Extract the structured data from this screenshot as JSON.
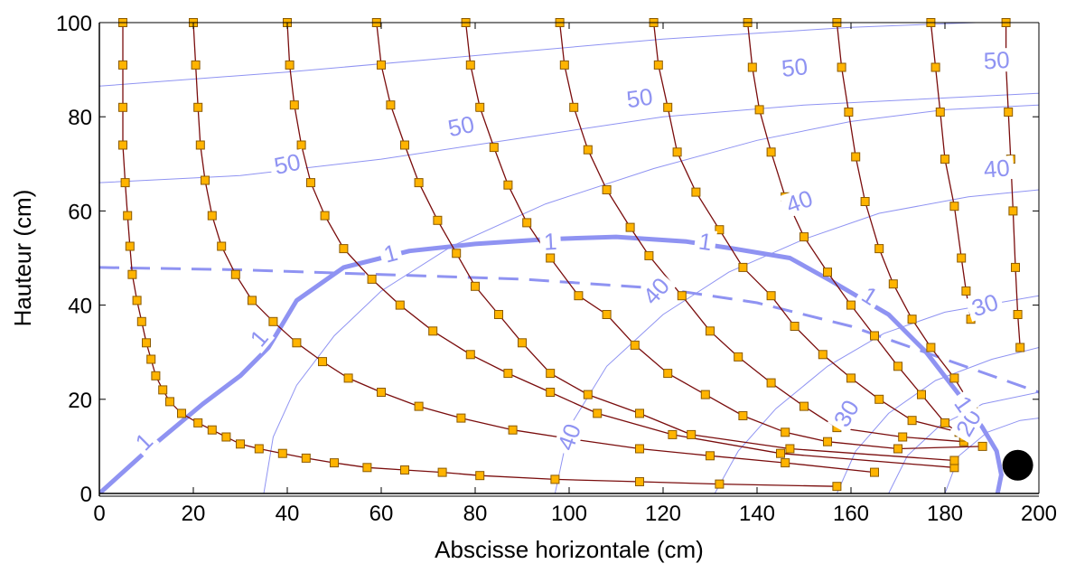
{
  "chart_data": {
    "type": "line",
    "title": "",
    "xlabel": "Abscisse horizontale (cm)",
    "ylabel": "Hauteur (cm)",
    "xlim": [
      0,
      200
    ],
    "ylim": [
      0,
      100
    ],
    "x_ticks": [
      "0",
      "20",
      "40",
      "60",
      "80",
      "100",
      "120",
      "140",
      "160",
      "180",
      "200"
    ],
    "y_ticks": [
      "0",
      "20",
      "40",
      "60",
      "80",
      "100"
    ],
    "grid": false,
    "colors": {
      "trajectory": "#7a0d0d",
      "marker_fill": "#ffb400",
      "marker_edge": "#8a5a00",
      "contour": "#8f93f2",
      "source": "#000000"
    },
    "source_point": {
      "x": 195.5,
      "y": 6
    },
    "trajectories": [
      {
        "points": [
          [
            5,
            100
          ],
          [
            5,
            91
          ],
          [
            5,
            82
          ],
          [
            5,
            74
          ],
          [
            5.5,
            66
          ],
          [
            6,
            59
          ],
          [
            6.5,
            52.5
          ],
          [
            7,
            46.5
          ],
          [
            8,
            41
          ],
          [
            9,
            36.5
          ],
          [
            10,
            32
          ],
          [
            11,
            28.5
          ],
          [
            12,
            25
          ],
          [
            13.5,
            22
          ],
          [
            15,
            19.5
          ],
          [
            17.5,
            17
          ],
          [
            21,
            15
          ],
          [
            24,
            13.5
          ],
          [
            27,
            12
          ],
          [
            30,
            10.5
          ],
          [
            34,
            9.5
          ],
          [
            39,
            8.5
          ],
          [
            44,
            7.5
          ],
          [
            50,
            6.5
          ],
          [
            57,
            5.5
          ],
          [
            65,
            5
          ],
          [
            73,
            4.5
          ],
          [
            81,
            3.8
          ],
          [
            97,
            3
          ],
          [
            115,
            2.5
          ],
          [
            132,
            2
          ],
          [
            157,
            1.5
          ]
        ]
      },
      {
        "points": [
          [
            20,
            100
          ],
          [
            20.5,
            91
          ],
          [
            21,
            82
          ],
          [
            21.5,
            74
          ],
          [
            22.5,
            66.5
          ],
          [
            24,
            59
          ],
          [
            26,
            52.5
          ],
          [
            29,
            46.5
          ],
          [
            32.5,
            41
          ],
          [
            37,
            36.5
          ],
          [
            42,
            32
          ],
          [
            47.5,
            28
          ],
          [
            53,
            24.5
          ],
          [
            60,
            21.5
          ],
          [
            68,
            18.5
          ],
          [
            77,
            16
          ],
          [
            88,
            13.5
          ],
          [
            101,
            11.5
          ],
          [
            115,
            9.5
          ],
          [
            130,
            8
          ],
          [
            146,
            6.5
          ],
          [
            165,
            4.5
          ]
        ]
      },
      {
        "points": [
          [
            40,
            100
          ],
          [
            40.5,
            91
          ],
          [
            41.5,
            82.5
          ],
          [
            43,
            74
          ],
          [
            45,
            66
          ],
          [
            48,
            59
          ],
          [
            52,
            52
          ],
          [
            58,
            45.5
          ],
          [
            64,
            40
          ],
          [
            71,
            34.5
          ],
          [
            79,
            29.5
          ],
          [
            87,
            25.5
          ],
          [
            96,
            21.5
          ],
          [
            106,
            17
          ],
          [
            122,
            12.5
          ],
          [
            145,
            8.5
          ],
          [
            182,
            5.5
          ]
        ]
      },
      {
        "points": [
          [
            59,
            100
          ],
          [
            60,
            91
          ],
          [
            62,
            82.5
          ],
          [
            65,
            74
          ],
          [
            68,
            66
          ],
          [
            72,
            58
          ],
          [
            76,
            51
          ],
          [
            80,
            44
          ],
          [
            85,
            38
          ],
          [
            90,
            32
          ],
          [
            96,
            25.5
          ],
          [
            104,
            21
          ],
          [
            115,
            17
          ],
          [
            126,
            12.5
          ],
          [
            147,
            9.5
          ],
          [
            182,
            7
          ]
        ]
      },
      {
        "points": [
          [
            78,
            100
          ],
          [
            79,
            91
          ],
          [
            81,
            82
          ],
          [
            84,
            73.5
          ],
          [
            87,
            65.5
          ],
          [
            91,
            57.5
          ],
          [
            96,
            50
          ],
          [
            102,
            42
          ],
          [
            108,
            38
          ],
          [
            114,
            31.5
          ],
          [
            121,
            25.5
          ],
          [
            129,
            21
          ],
          [
            137,
            16.5
          ],
          [
            146,
            13
          ],
          [
            155,
            11
          ],
          [
            170,
            9.5
          ],
          [
            188,
            10
          ]
        ]
      },
      {
        "points": [
          [
            98,
            100
          ],
          [
            99,
            91
          ],
          [
            101,
            82
          ],
          [
            104,
            73
          ],
          [
            108,
            64.5
          ],
          [
            113,
            56.5
          ],
          [
            117,
            50.5
          ],
          [
            124,
            42
          ],
          [
            130,
            34.5
          ],
          [
            136,
            29
          ],
          [
            143,
            23.5
          ],
          [
            150,
            18.5
          ],
          [
            157,
            14
          ],
          [
            171,
            12
          ],
          [
            184,
            11
          ]
        ]
      },
      {
        "points": [
          [
            118,
            100
          ],
          [
            119,
            91
          ],
          [
            121,
            82
          ],
          [
            123,
            72.5
          ],
          [
            127,
            64
          ],
          [
            132,
            56
          ],
          [
            137,
            48
          ],
          [
            143,
            42
          ],
          [
            148,
            35.5
          ],
          [
            154,
            29.5
          ],
          [
            160,
            24.5
          ],
          [
            166,
            20
          ],
          [
            173,
            15.5
          ],
          [
            183,
            13
          ]
        ]
      },
      {
        "points": [
          [
            138,
            100
          ],
          [
            139,
            90.5
          ],
          [
            140.5,
            81.5
          ],
          [
            143,
            72.5
          ],
          [
            146,
            63
          ],
          [
            150,
            54.5
          ],
          [
            155,
            47
          ],
          [
            160,
            40
          ],
          [
            165,
            33.5
          ],
          [
            170,
            27
          ],
          [
            175,
            21
          ],
          [
            180,
            15
          ],
          [
            184,
            12
          ]
        ]
      },
      {
        "points": [
          [
            157,
            100
          ],
          [
            158,
            90.5
          ],
          [
            159.5,
            81
          ],
          [
            161,
            71.5
          ],
          [
            163,
            62
          ],
          [
            166,
            52
          ],
          [
            169,
            44.5
          ],
          [
            173,
            37
          ],
          [
            177,
            31
          ],
          [
            182,
            24.5
          ],
          [
            186,
            18
          ]
        ]
      },
      {
        "points": [
          [
            177,
            100
          ],
          [
            178,
            90.5
          ],
          [
            179,
            81
          ],
          [
            180,
            71
          ],
          [
            182,
            61
          ],
          [
            183.5,
            50
          ],
          [
            184.5,
            43
          ],
          [
            185.5,
            37
          ]
        ]
      },
      {
        "points": [
          [
            193,
            100
          ],
          [
            193,
            91
          ],
          [
            193.5,
            81
          ],
          [
            194,
            71
          ],
          [
            194.5,
            60
          ],
          [
            195,
            48
          ],
          [
            195.5,
            38
          ],
          [
            196,
            31
          ]
        ]
      }
    ],
    "contours": [
      {
        "style": "bold-solid",
        "label": "1",
        "points": [
          [
            0,
            0
          ],
          [
            10,
            9
          ],
          [
            22,
            19
          ],
          [
            30,
            25
          ],
          [
            36,
            31
          ],
          [
            42,
            41
          ],
          [
            52,
            48
          ],
          [
            66,
            51.5
          ],
          [
            80,
            53
          ],
          [
            95,
            54
          ],
          [
            110,
            54.5
          ],
          [
            125,
            53.5
          ],
          [
            135,
            52
          ],
          [
            147,
            50
          ],
          [
            156,
            45
          ],
          [
            168,
            38
          ],
          [
            176,
            30
          ],
          [
            183,
            21
          ],
          [
            188,
            14
          ],
          [
            191,
            9
          ],
          [
            192,
            4
          ],
          [
            191,
            -1
          ]
        ]
      },
      {
        "style": "bold-dashed",
        "label": "",
        "points": [
          [
            0,
            48
          ],
          [
            30,
            47.5
          ],
          [
            60,
            46.5
          ],
          [
            90,
            45.5
          ],
          [
            120,
            43.5
          ],
          [
            140,
            40.5
          ],
          [
            160,
            35.5
          ],
          [
            180,
            28.5
          ],
          [
            200,
            21.5
          ]
        ]
      },
      {
        "style": "thin",
        "label": "50",
        "points": [
          [
            0,
            66
          ],
          [
            30,
            67.5
          ],
          [
            60,
            71
          ],
          [
            90,
            75.5
          ],
          [
            120,
            80
          ],
          [
            150,
            82.5
          ],
          [
            180,
            84
          ],
          [
            200,
            85
          ]
        ]
      },
      {
        "style": "thin",
        "label": "50",
        "points": [
          [
            0,
            86.5
          ],
          [
            40,
            89.5
          ],
          [
            80,
            93
          ],
          [
            120,
            96.5
          ],
          [
            160,
            99
          ],
          [
            200,
            100.5
          ]
        ]
      },
      {
        "style": "thin",
        "label": "40",
        "points": [
          [
            35,
            0
          ],
          [
            37,
            12
          ],
          [
            42,
            23
          ],
          [
            50,
            33.5
          ],
          [
            60,
            43
          ],
          [
            75,
            52.5
          ],
          [
            95,
            61.5
          ],
          [
            118,
            69
          ],
          [
            140,
            75
          ],
          [
            160,
            79
          ],
          [
            180,
            81.5
          ],
          [
            200,
            82.5
          ]
        ]
      },
      {
        "style": "thin",
        "label": "40",
        "points": [
          [
            97,
            0
          ],
          [
            100,
            14
          ],
          [
            108,
            27
          ],
          [
            120,
            38
          ],
          [
            134,
            47
          ],
          [
            150,
            54
          ],
          [
            166,
            59.5
          ],
          [
            185,
            63
          ],
          [
            200,
            64.5
          ]
        ]
      },
      {
        "style": "thin",
        "label": "30",
        "points": [
          [
            131,
            0
          ],
          [
            136,
            9
          ],
          [
            144,
            18
          ],
          [
            155,
            27
          ],
          [
            167,
            34
          ],
          [
            180,
            38.5
          ],
          [
            200,
            42
          ]
        ]
      },
      {
        "style": "thin",
        "label": "30",
        "points": [
          [
            157,
            0
          ],
          [
            161,
            9
          ],
          [
            168,
            17
          ],
          [
            178,
            24
          ],
          [
            190,
            28.5
          ],
          [
            200,
            31
          ]
        ]
      },
      {
        "style": "thin",
        "label": "",
        "points": [
          [
            168,
            0
          ],
          [
            172,
            8
          ],
          [
            179,
            14.5
          ],
          [
            188,
            19
          ],
          [
            200,
            21.5
          ]
        ]
      },
      {
        "style": "thin",
        "label": "20",
        "points": [
          [
            180,
            0
          ],
          [
            183,
            8
          ],
          [
            189,
            13
          ],
          [
            196,
            15.5
          ],
          [
            200,
            16
          ]
        ]
      }
    ],
    "contour_labels": [
      {
        "text": "50",
        "x": 40,
        "y": 70,
        "angle": -12
      },
      {
        "text": "50",
        "x": 77,
        "y": 78,
        "angle": -12
      },
      {
        "text": "50",
        "x": 115,
        "y": 84,
        "angle": -8
      },
      {
        "text": "50",
        "x": 148,
        "y": 90.5,
        "angle": -6
      },
      {
        "text": "50",
        "x": 191,
        "y": 92,
        "angle": -3
      },
      {
        "text": "40",
        "x": 149,
        "y": 62,
        "angle": -20
      },
      {
        "text": "40",
        "x": 191,
        "y": 69,
        "angle": -5
      },
      {
        "text": "40",
        "x": 118.5,
        "y": 43,
        "angle": -48
      },
      {
        "text": "40",
        "x": 100,
        "y": 12,
        "angle": -70
      },
      {
        "text": "30",
        "x": 188.5,
        "y": 40,
        "angle": -18
      },
      {
        "text": "30",
        "x": 159,
        "y": 17,
        "angle": -60
      },
      {
        "text": "20",
        "x": 185,
        "y": 15,
        "angle": -60
      },
      {
        "text": "1",
        "x": 62,
        "y": 51,
        "angle": -15
      },
      {
        "text": "1",
        "x": 96,
        "y": 53.5,
        "angle": -3
      },
      {
        "text": "1",
        "x": 129,
        "y": 53.5,
        "angle": 8
      },
      {
        "text": "1",
        "x": 164,
        "y": 42,
        "angle": 32
      },
      {
        "text": "1",
        "x": 34,
        "y": 33,
        "angle": -50
      },
      {
        "text": "1",
        "x": 9.5,
        "y": 11,
        "angle": -45
      },
      {
        "text": "1",
        "x": 184,
        "y": 19,
        "angle": 55
      }
    ]
  }
}
